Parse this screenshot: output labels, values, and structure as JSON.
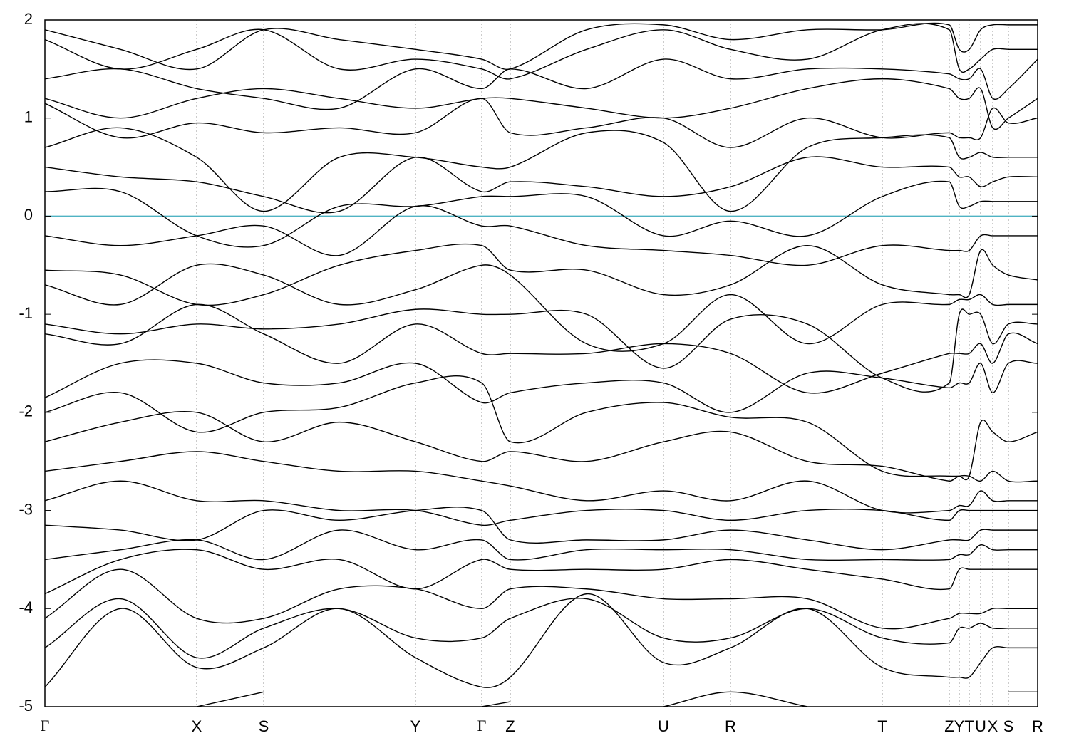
{
  "chart_data": {
    "type": "line",
    "color": "#000000",
    "ylim": [
      -5,
      2
    ],
    "yticks": [
      -5,
      -4,
      -3,
      -2,
      -1,
      0,
      1,
      2
    ],
    "xlim": [
      0,
      13.93
    ],
    "xticks": [
      {
        "value": 0,
        "label": "Γ"
      },
      {
        "value": 2.13,
        "label": "X"
      },
      {
        "value": 3.07,
        "label": "S"
      },
      {
        "value": 5.2,
        "label": "Y"
      },
      {
        "value": 6.13,
        "label": "Γ"
      },
      {
        "value": 6.53,
        "label": "Z"
      },
      {
        "value": 8.68,
        "label": "U"
      },
      {
        "value": 9.62,
        "label": "R"
      },
      {
        "value": 11.75,
        "label": "T"
      },
      {
        "value": 12.69,
        "label": "Z"
      },
      {
        "value": 12.83,
        "label": "Y"
      },
      {
        "value": 12.97,
        "label": "T"
      },
      {
        "value": 13.13,
        "label": "U"
      },
      {
        "value": 13.3,
        "label": "X"
      },
      {
        "value": 13.52,
        "label": "S"
      },
      {
        "value": 13.93,
        "label": "R"
      }
    ],
    "grid": true,
    "reference_line": {
      "value": 0,
      "color": "#4fb3c3"
    },
    "x": [
      0,
      1.06,
      2.13,
      3.07,
      4.13,
      5.2,
      6.13,
      6.53,
      7.6,
      8.68,
      9.62,
      10.7,
      11.75,
      12.69,
      12.83,
      12.97,
      13.13,
      13.3,
      13.52,
      13.93
    ],
    "series": [
      {
        "values": [
          1.9,
          1.7,
          1.5,
          1.9,
          1.8,
          1.7,
          1.6,
          1.5,
          1.9,
          1.95,
          1.8,
          1.9,
          1.9,
          1.95,
          1.7,
          1.7,
          1.9,
          1.95,
          1.95,
          1.95
        ]
      },
      {
        "values": [
          1.8,
          1.5,
          1.7,
          1.9,
          1.5,
          1.6,
          1.5,
          1.4,
          1.7,
          1.9,
          1.7,
          1.6,
          1.9,
          1.9,
          1.5,
          1.5,
          1.6,
          1.7,
          1.7,
          1.7
        ]
      },
      {
        "values": [
          1.4,
          1.5,
          1.3,
          1.2,
          1.1,
          1.5,
          1.3,
          1.5,
          1.3,
          1.6,
          1.4,
          1.5,
          1.5,
          1.45,
          1.4,
          1.4,
          1.5,
          1.2,
          1.3,
          1.6
        ]
      },
      {
        "values": [
          1.2,
          1.0,
          1.2,
          1.3,
          1.2,
          1.1,
          1.2,
          1.2,
          1.1,
          1.0,
          1.1,
          1.3,
          1.4,
          1.3,
          1.2,
          1.2,
          1.3,
          0.9,
          1.0,
          1.2
        ]
      },
      {
        "values": [
          1.15,
          0.8,
          0.95,
          0.85,
          0.9,
          0.85,
          1.2,
          0.85,
          0.9,
          1.0,
          0.7,
          1.0,
          0.8,
          0.85,
          0.8,
          0.8,
          0.8,
          1.1,
          0.95,
          1.0
        ]
      },
      {
        "values": [
          0.7,
          0.9,
          0.6,
          0.05,
          0.6,
          0.6,
          0.5,
          0.5,
          0.85,
          0.75,
          0.05,
          0.7,
          0.8,
          0.8,
          0.6,
          0.6,
          0.65,
          0.6,
          0.6,
          0.6
        ]
      },
      {
        "values": [
          0.5,
          0.4,
          0.35,
          0.2,
          0.05,
          0.6,
          0.25,
          0.35,
          0.3,
          0.2,
          0.3,
          0.6,
          0.5,
          0.5,
          0.4,
          0.4,
          0.3,
          0.35,
          0.4,
          0.4
        ]
      },
      {
        "values": [
          0.25,
          0.25,
          -0.2,
          -0.3,
          0.1,
          0.1,
          0.2,
          0.2,
          0.2,
          -0.2,
          -0.05,
          -0.2,
          0.2,
          0.35,
          0.1,
          0.1,
          0.15,
          0.15,
          0.15,
          0.15
        ]
      },
      {
        "values": [
          -0.2,
          -0.3,
          -0.2,
          -0.1,
          -0.4,
          0.1,
          -0.1,
          -0.1,
          -0.3,
          -0.35,
          -0.4,
          -0.5,
          -0.3,
          -0.35,
          -0.35,
          -0.35,
          -0.2,
          -0.2,
          -0.2,
          -0.2
        ]
      },
      {
        "values": [
          -0.55,
          -0.6,
          -0.9,
          -0.8,
          -0.5,
          -0.35,
          -0.3,
          -0.55,
          -0.55,
          -0.8,
          -0.7,
          -0.3,
          -0.7,
          -0.8,
          -0.8,
          -0.8,
          -0.35,
          -0.5,
          -0.6,
          -0.65
        ]
      },
      {
        "values": [
          -0.7,
          -0.9,
          -0.5,
          -0.6,
          -0.9,
          -0.75,
          -0.5,
          -0.6,
          -1.3,
          -1.3,
          -0.8,
          -1.3,
          -0.9,
          -0.9,
          -0.85,
          -0.85,
          -0.8,
          -0.9,
          -0.9,
          -0.9
        ]
      },
      {
        "values": [
          -1.1,
          -1.2,
          -1.1,
          -1.15,
          -1.1,
          -0.95,
          -1.0,
          -1.0,
          -1.0,
          -1.55,
          -1.05,
          -1.1,
          -1.65,
          -1.7,
          -1.0,
          -1.0,
          -1.0,
          -1.3,
          -1.1,
          -1.1
        ]
      },
      {
        "values": [
          -1.2,
          -1.3,
          -0.9,
          -1.2,
          -1.5,
          -1.1,
          -1.4,
          -1.4,
          -1.4,
          -1.3,
          -1.4,
          -1.8,
          -1.6,
          -1.4,
          -1.4,
          -1.4,
          -1.3,
          -1.5,
          -1.2,
          -1.3
        ]
      },
      {
        "values": [
          -1.85,
          -1.5,
          -1.5,
          -1.7,
          -1.7,
          -1.5,
          -1.9,
          -1.8,
          -1.7,
          -1.7,
          -2.0,
          -1.6,
          -1.65,
          -1.75,
          -1.7,
          -1.7,
          -1.5,
          -1.8,
          -1.5,
          -1.5
        ]
      },
      {
        "values": [
          -2.0,
          -1.8,
          -2.2,
          -2.0,
          -1.95,
          -1.7,
          -1.7,
          -2.3,
          -2.0,
          -1.9,
          -2.05,
          -2.1,
          -2.6,
          -2.65,
          -2.65,
          -2.65,
          -2.1,
          -2.2,
          -2.3,
          -2.2
        ]
      },
      {
        "values": [
          -2.3,
          -2.1,
          -2.0,
          -2.3,
          -2.1,
          -2.3,
          -2.5,
          -2.4,
          -2.5,
          -2.3,
          -2.2,
          -2.5,
          -2.55,
          -2.7,
          -2.65,
          -2.65,
          -2.7,
          -2.6,
          -2.7,
          -2.7
        ]
      },
      {
        "values": [
          -2.6,
          -2.5,
          -2.4,
          -2.5,
          -2.6,
          -2.6,
          -2.7,
          -2.75,
          -2.9,
          -2.8,
          -2.9,
          -2.7,
          -3.0,
          -3.0,
          -2.95,
          -2.95,
          -2.8,
          -2.9,
          -2.9,
          -2.9
        ]
      },
      {
        "values": [
          -2.9,
          -2.7,
          -2.9,
          -2.9,
          -3.0,
          -3.0,
          -3.15,
          -3.1,
          -3.0,
          -3.0,
          -3.1,
          -3.0,
          -3.0,
          -3.1,
          -3.0,
          -3.0,
          -3.0,
          -3.0,
          -3.0,
          -3.0
        ]
      },
      {
        "values": [
          -3.15,
          -3.2,
          -3.3,
          -3.0,
          -3.1,
          -3.0,
          -3.0,
          -3.3,
          -3.3,
          -3.3,
          -3.2,
          -3.3,
          -3.4,
          -3.3,
          -3.3,
          -3.3,
          -3.2,
          -3.2,
          -3.2,
          -3.2
        ]
      },
      {
        "values": [
          -3.5,
          -3.4,
          -3.3,
          -3.5,
          -3.2,
          -3.4,
          -3.3,
          -3.5,
          -3.4,
          -3.4,
          -3.4,
          -3.5,
          -3.5,
          -3.5,
          -3.45,
          -3.45,
          -3.35,
          -3.4,
          -3.4,
          -3.4
        ]
      },
      {
        "values": [
          -3.85,
          -3.5,
          -3.4,
          -3.6,
          -3.5,
          -3.8,
          -3.5,
          -3.6,
          -3.6,
          -3.6,
          -3.5,
          -3.6,
          -3.7,
          -3.8,
          -3.6,
          -3.6,
          -3.6,
          -3.6,
          -3.6,
          -3.6
        ]
      },
      {
        "values": [
          -4.1,
          -3.6,
          -4.1,
          -4.1,
          -3.8,
          -3.8,
          -4.0,
          -3.8,
          -3.8,
          -3.9,
          -3.9,
          -3.9,
          -4.2,
          -4.1,
          -4.05,
          -4.05,
          -4.05,
          -4.0,
          -4.0,
          -4.0
        ]
      },
      {
        "values": [
          -4.4,
          -3.9,
          -4.5,
          -4.2,
          -4.0,
          -4.3,
          -4.3,
          -4.1,
          -3.9,
          -4.3,
          -4.3,
          -4.0,
          -4.3,
          -4.35,
          -4.2,
          -4.2,
          -4.15,
          -4.2,
          -4.2,
          -4.2
        ]
      },
      {
        "values": [
          -4.8,
          -4.0,
          -4.6,
          -4.4,
          -4.0,
          -4.5,
          -4.8,
          -4.7,
          -3.85,
          -4.55,
          -4.4,
          -4.0,
          -4.6,
          -4.7,
          -4.7,
          -4.7,
          -4.55,
          -4.4,
          -4.4,
          -4.4
        ]
      },
      {
        "values": [
          null,
          null,
          -5.0,
          -4.85,
          null,
          null,
          -5.0,
          -4.95,
          null,
          -5.0,
          -4.85,
          -5.0,
          null,
          null,
          null,
          null,
          null,
          null,
          -4.85,
          -4.85
        ]
      }
    ]
  }
}
